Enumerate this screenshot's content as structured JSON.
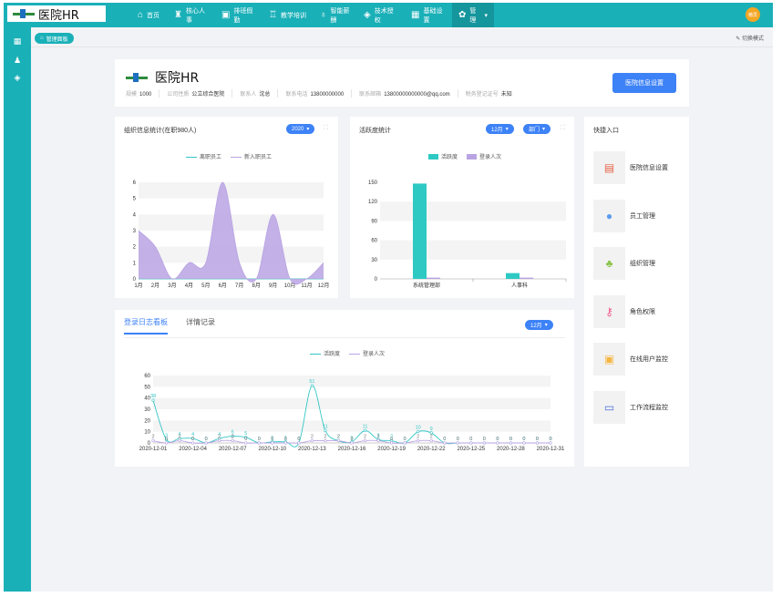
{
  "header": {
    "logo_text": "医院HR",
    "nav": [
      {
        "label": "首页",
        "icon": "home-icon",
        "glyph": "⌂",
        "active": false
      },
      {
        "label": "核心人事",
        "icon": "org-icon",
        "glyph": "♜",
        "active": false
      },
      {
        "label": "排班假勤",
        "icon": "calendar-icon",
        "glyph": "▣",
        "active": false
      },
      {
        "label": "教学培训",
        "icon": "institution-icon",
        "glyph": "♖",
        "active": false
      },
      {
        "label": "智能薪酬",
        "icon": "moneybag-icon",
        "glyph": "♁",
        "active": false
      },
      {
        "label": "技术授权",
        "icon": "tag-icon",
        "glyph": "◈",
        "active": false
      },
      {
        "label": "基础设置",
        "icon": "grid-icon",
        "glyph": "▦",
        "active": false
      },
      {
        "label": "管理",
        "icon": "gear-icon",
        "glyph": "✿",
        "active": true
      }
    ],
    "avatar_text": "稽员"
  },
  "subbar": {
    "breadcrumb": "管理面板",
    "switch_mode": "切换模式"
  },
  "hospital": {
    "name": "医院HR",
    "info": [
      {
        "label": "规模",
        "value": "1000"
      },
      {
        "label": "公司性质",
        "value": "公立综合医院"
      },
      {
        "label": "联系人",
        "value": "沈总"
      },
      {
        "label": "联系电话",
        "value": "13800000000"
      },
      {
        "label": "联系邮箱",
        "value": "13800000000000@qq.com"
      },
      {
        "label": "税务登记证号",
        "value": "未知"
      }
    ],
    "settings_button": "医院信息设置"
  },
  "org_card": {
    "title": "组织信息统计(在职980人)",
    "year_select": "2020"
  },
  "activity_card": {
    "title": "活跃度统计",
    "month_select": "12月",
    "dept_select": "部门"
  },
  "quick": {
    "title": "快捷入口",
    "items": [
      {
        "label": "医院信息设置",
        "icon": "clipboard-icon",
        "glyph": "▤",
        "color": "#e8664a"
      },
      {
        "label": "员工管理",
        "icon": "user-icon",
        "glyph": "●",
        "color": "#5b9bf0"
      },
      {
        "label": "组织管理",
        "icon": "org-chart-icon",
        "glyph": "♣",
        "color": "#8bc34a"
      },
      {
        "label": "角色权限",
        "icon": "key-icon",
        "glyph": "⚷",
        "color": "#ef5b8f"
      },
      {
        "label": "在线用户监控",
        "icon": "user-card-icon",
        "glyph": "▣",
        "color": "#f5b642"
      },
      {
        "label": "工作流程监控",
        "icon": "chart-monitor-icon",
        "glyph": "▭",
        "color": "#4a6fd8"
      }
    ]
  },
  "log_card": {
    "tabs": [
      "登录日志看板",
      "详情记录"
    ],
    "month_select": "12月"
  },
  "chart_data": [
    {
      "type": "area",
      "categories": [
        "1月",
        "2月",
        "3月",
        "4月",
        "5月",
        "6月",
        "7月",
        "8月",
        "9月",
        "10月",
        "11月",
        "12月"
      ],
      "series": [
        {
          "name": "离职员工",
          "values": [
            0,
            0,
            0,
            0,
            0,
            0,
            0,
            0,
            0,
            0,
            0,
            0
          ],
          "color": "#36c6c6"
        },
        {
          "name": "新入职员工",
          "values": [
            3,
            2,
            0,
            1,
            1,
            6,
            1,
            0,
            4,
            0,
            0,
            1
          ],
          "color": "#b9a3e3"
        }
      ],
      "ylim": [
        0,
        6
      ],
      "yticks": [
        0,
        1,
        2,
        3,
        4,
        5,
        6
      ],
      "legend": "top-center",
      "grid": true
    },
    {
      "type": "bar",
      "categories": [
        "系统管理部",
        "人事科"
      ],
      "series": [
        {
          "name": "活跃度",
          "values": [
            148,
            9
          ],
          "color": "#2ec9c3"
        },
        {
          "name": "登录人次",
          "values": [
            2,
            2
          ],
          "color": "#b9a3e3"
        }
      ],
      "ylim": [
        0,
        150
      ],
      "yticks": [
        0,
        30,
        60,
        90,
        120,
        150
      ],
      "legend": "top-center",
      "grid": true
    },
    {
      "type": "line",
      "categories": [
        "2020-12-01",
        "2020-12-02",
        "2020-12-03",
        "2020-12-04",
        "2020-12-05",
        "2020-12-06",
        "2020-12-07",
        "2020-12-08",
        "2020-12-09",
        "2020-12-10",
        "2020-12-11",
        "2020-12-12",
        "2020-12-13",
        "2020-12-14",
        "2020-12-15",
        "2020-12-16",
        "2020-12-17",
        "2020-12-18",
        "2020-12-19",
        "2020-12-20",
        "2020-12-21",
        "2020-12-22",
        "2020-12-23",
        "2020-12-24",
        "2020-12-25",
        "2020-12-26",
        "2020-12-27",
        "2020-12-28",
        "2020-12-29",
        "2020-12-30",
        "2020-12-31"
      ],
      "xtick_labels": [
        "2020-12-01",
        "2020-12-04",
        "2020-12-07",
        "2020-12-10",
        "2020-12-13",
        "2020-12-16",
        "2020-12-19",
        "2020-12-22",
        "2020-12-25",
        "2020-12-28",
        "2020-12-31"
      ],
      "series": [
        {
          "name": "活跃度",
          "values": [
            38,
            3,
            4,
            4,
            0,
            4,
            6,
            5,
            0,
            1,
            1,
            0,
            51,
            11,
            2,
            1,
            11,
            3,
            2,
            0,
            10,
            9,
            0,
            0,
            0,
            0,
            0,
            0,
            0,
            0,
            0
          ],
          "color": "#36c6c6"
        },
        {
          "name": "登录人次",
          "values": [
            2,
            0,
            2,
            0,
            0,
            2,
            2,
            0,
            0,
            0,
            0,
            0,
            2,
            2,
            2,
            0,
            2,
            2,
            0,
            0,
            2,
            2,
            0,
            0,
            0,
            0,
            0,
            0,
            0,
            0,
            0
          ],
          "color": "#b9a3e3"
        }
      ],
      "ylim": [
        0,
        60
      ],
      "yticks": [
        0,
        10,
        20,
        30,
        40,
        50,
        60
      ],
      "legend": "top-center",
      "grid": true
    }
  ]
}
